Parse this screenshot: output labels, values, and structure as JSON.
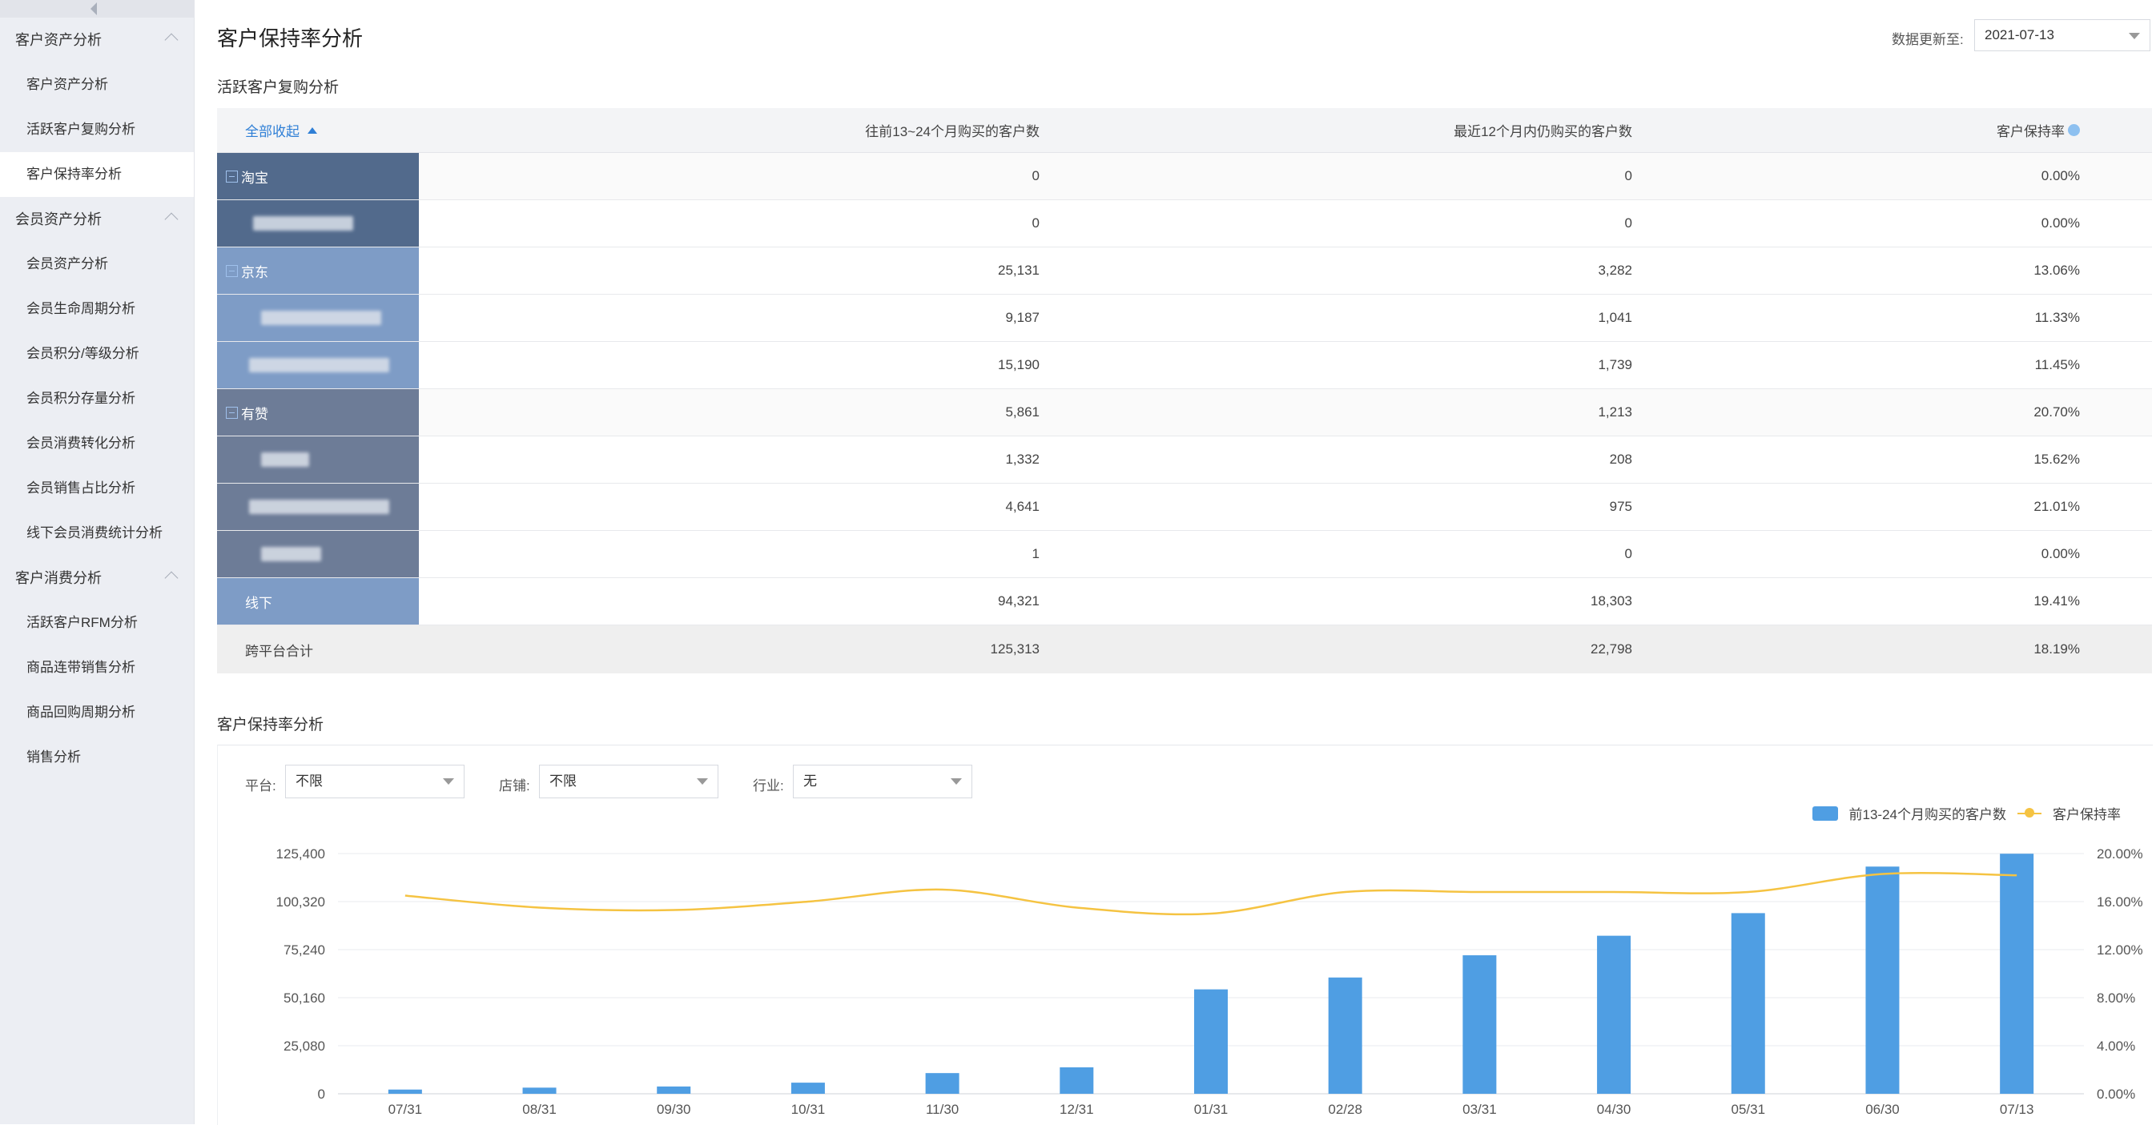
{
  "sidebar": {
    "groups": [
      {
        "label": "客户资产分析",
        "items": [
          "客户资产分析",
          "活跃客户复购分析",
          "客户保持率分析"
        ]
      },
      {
        "label": "会员资产分析",
        "items": [
          "会员资产分析",
          "会员生命周期分析",
          "会员积分/等级分析",
          "会员积分存量分析",
          "会员消费转化分析",
          "会员销售占比分析",
          "线下会员消费统计分析"
        ]
      },
      {
        "label": "客户消费分析",
        "items": [
          "活跃客户RFM分析",
          "商品连带销售分析",
          "商品回购周期分析",
          "销售分析"
        ]
      }
    ]
  },
  "header": {
    "title": "客户保持率分析",
    "update_label": "数据更新至:",
    "update_date": "2021-07-13"
  },
  "table_section": {
    "title": "活跃客户复购分析",
    "toggle_label": "全部收起",
    "columns": [
      "往前13~24个月购买的客户数",
      "最近12个月内仍购买的客户数",
      "客户保持率"
    ],
    "rows": [
      {
        "label": "淘宝",
        "c1": "0",
        "c2": "0",
        "c3": "0.00%"
      },
      {
        "label": "",
        "c1": "0",
        "c2": "0",
        "c3": "0.00%"
      },
      {
        "label": "京东",
        "c1": "25,131",
        "c2": "3,282",
        "c3": "13.06%"
      },
      {
        "label": "",
        "c1": "9,187",
        "c2": "1,041",
        "c3": "11.33%"
      },
      {
        "label": "",
        "c1": "15,190",
        "c2": "1,739",
        "c3": "11.45%"
      },
      {
        "label": "有赞",
        "c1": "5,861",
        "c2": "1,213",
        "c3": "20.70%"
      },
      {
        "label": "",
        "c1": "1,332",
        "c2": "208",
        "c3": "15.62%"
      },
      {
        "label": "",
        "c1": "4,641",
        "c2": "975",
        "c3": "21.01%"
      },
      {
        "label": "",
        "c1": "1",
        "c2": "0",
        "c3": "0.00%"
      },
      {
        "label": "线下",
        "c1": "94,321",
        "c2": "18,303",
        "c3": "19.41%"
      }
    ],
    "total": {
      "label": "跨平台合计",
      "c1": "125,313",
      "c2": "22,798",
      "c3": "18.19%"
    }
  },
  "chart_section": {
    "title": "客户保持率分析",
    "filters": [
      {
        "label": "平台:",
        "value": "不限"
      },
      {
        "label": "店铺:",
        "value": "不限"
      },
      {
        "label": "行业:",
        "value": "无"
      }
    ]
  },
  "chart_data": {
    "type": "bar",
    "categories": [
      "07/31",
      "08/31",
      "09/30",
      "10/31",
      "11/30",
      "12/31",
      "01/31",
      "02/28",
      "03/31",
      "04/30",
      "05/31",
      "06/30",
      "07/13"
    ],
    "series": [
      {
        "name": "前13-24个月购买的客户数",
        "axis": "left",
        "type": "bar",
        "color": "#4f9ee3",
        "values": [
          2200,
          3200,
          3800,
          5800,
          10800,
          13800,
          54500,
          60700,
          72300,
          82500,
          94300,
          118600,
          125313
        ]
      },
      {
        "name": "客户保持率",
        "axis": "right",
        "type": "line",
        "color": "#f5c342",
        "values": [
          16.5,
          15.5,
          15.3,
          16.0,
          17.0,
          15.5,
          15.0,
          16.8,
          16.8,
          16.8,
          16.8,
          18.3,
          18.19
        ]
      }
    ],
    "y_left": {
      "ticks": [
        "125,400",
        "100,320",
        "75,240",
        "50,160",
        "25,080",
        "0"
      ],
      "min": 0,
      "max": 125400
    },
    "y_right": {
      "ticks": [
        "20.00%",
        "16.00%",
        "12.00%",
        "8.00%",
        "4.00%",
        "0.00%"
      ],
      "min": 0,
      "max": 20
    },
    "legend_position": "top-right",
    "grid": true
  }
}
